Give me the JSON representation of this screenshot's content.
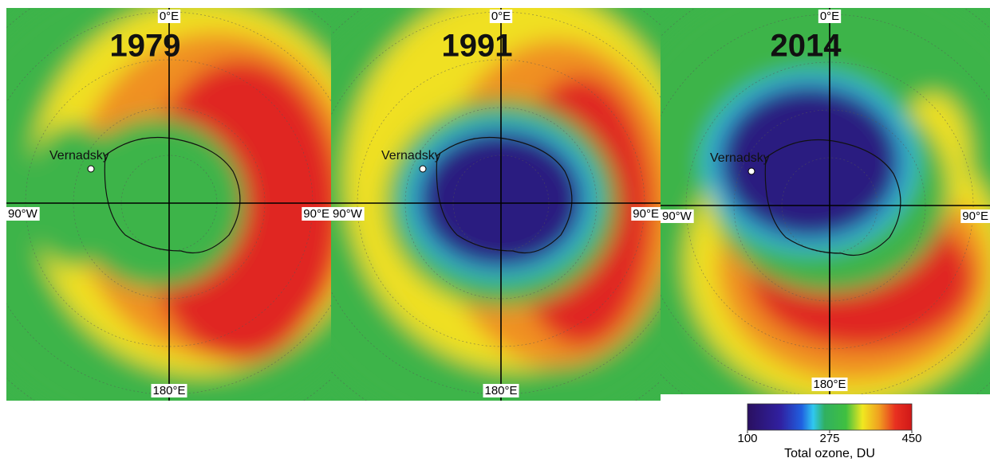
{
  "panels": [
    {
      "year": "1979",
      "north": "0°E",
      "west": "90°W",
      "east": "90°E",
      "south": "180°E",
      "station": "Vernadsky"
    },
    {
      "year": "1991",
      "north": "0°E",
      "west": "90°W",
      "east": "90°E",
      "south": "180°E",
      "station": "Vernadsky"
    },
    {
      "year": "2014",
      "north": "0°E",
      "west": "90°W",
      "east": "90°E",
      "south": "180°E",
      "station": "Vernadsky"
    }
  ],
  "colorbar": {
    "ticks": [
      100,
      275,
      450
    ],
    "title": "Total ozone, DU"
  }
}
